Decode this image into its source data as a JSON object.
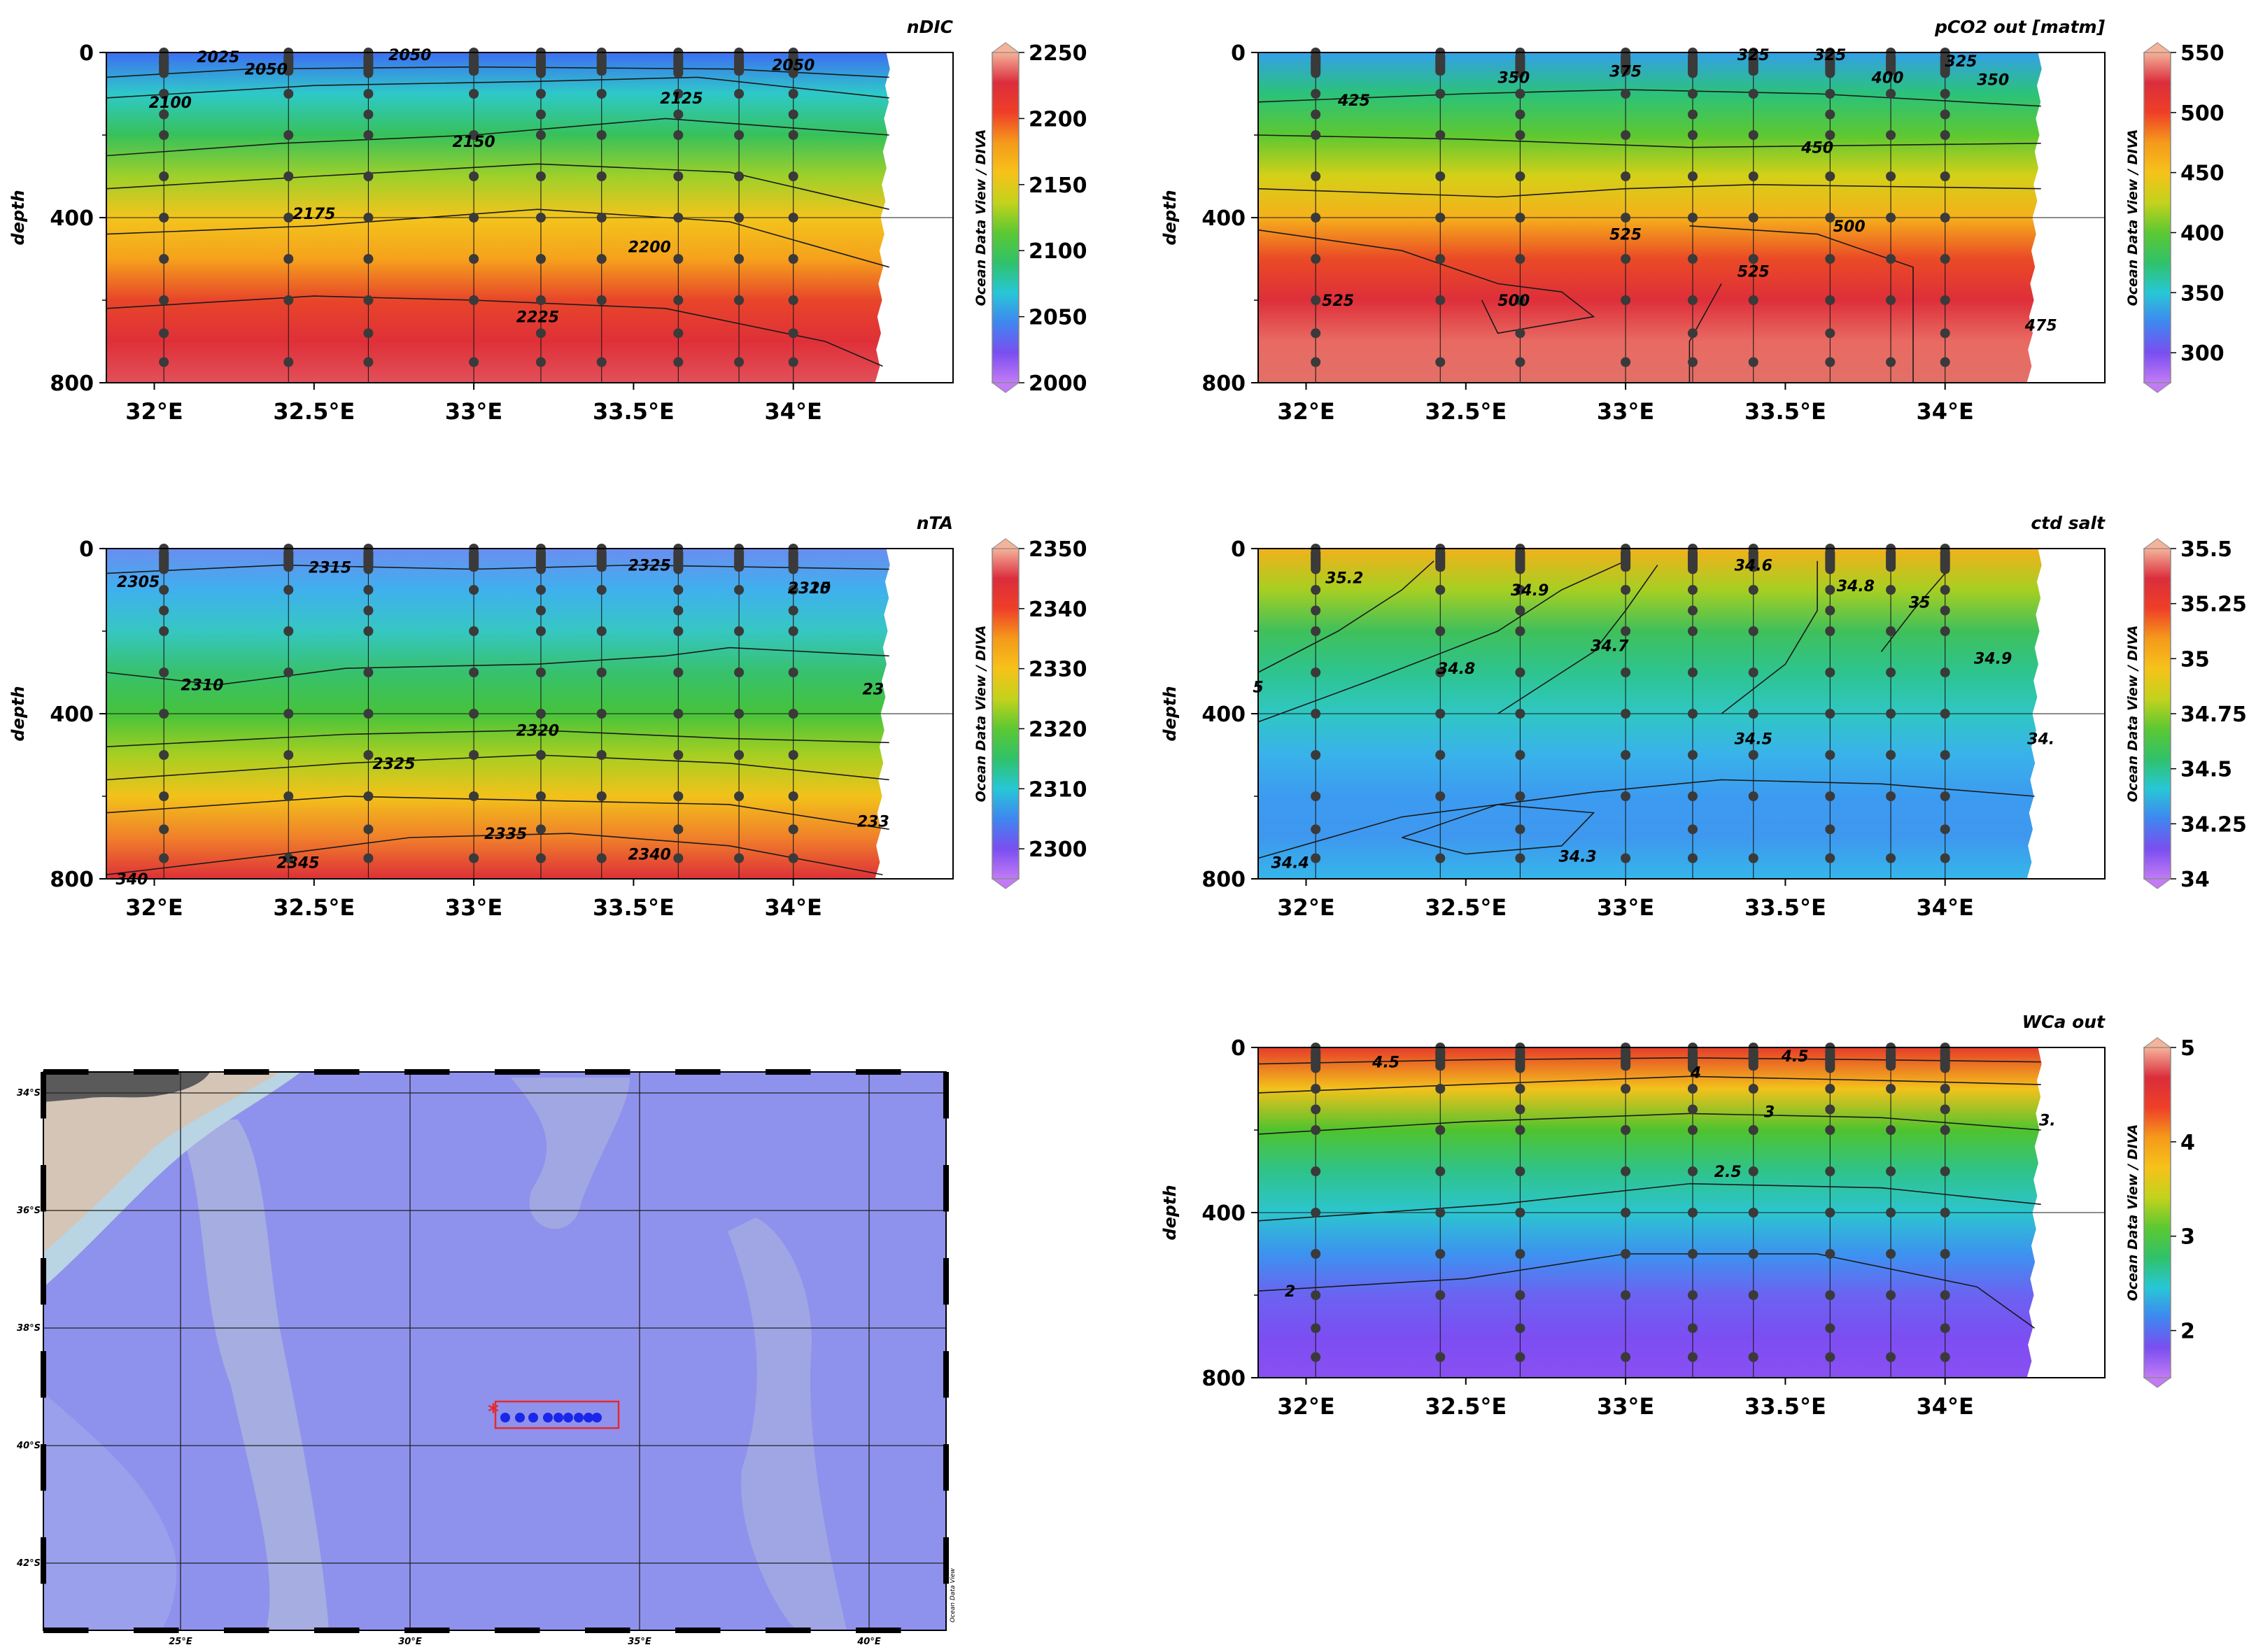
{
  "chart_data": [
    {
      "type": "heatmap",
      "title": "nDIC",
      "xlabel": "",
      "ylabel": "depth",
      "credit": "Ocean Data View / DIVA",
      "xlim": [
        31.85,
        34.5
      ],
      "ylim": [
        800,
        0
      ],
      "x_ticks": [
        "32°E",
        "32.5°E",
        "33°E",
        "33.5°E",
        "34°E"
      ],
      "y_ticks": [
        "0",
        "400",
        "800"
      ],
      "colorbar_ticks": [
        "2250",
        "2200",
        "2150",
        "2100",
        "2050",
        "2000"
      ],
      "colorbar_range": [
        2000,
        2250
      ],
      "contour_labels": [
        "2025",
        "2050",
        "2050",
        "2050",
        "2100",
        "2125",
        "2150",
        "2175",
        "2200",
        "2225"
      ],
      "stations_x": [
        32.03,
        32.42,
        32.67,
        33.0,
        33.21,
        33.4,
        33.64,
        33.83,
        34.0
      ],
      "sample_depths": [
        0,
        10,
        25,
        50,
        100,
        150,
        200,
        300,
        400,
        500,
        600,
        680,
        750
      ]
    },
    {
      "type": "heatmap",
      "title": "pCO2 out [matm]",
      "xlabel": "",
      "ylabel": "depth",
      "credit": "Ocean Data View / DIVA",
      "xlim": [
        31.85,
        34.5
      ],
      "ylim": [
        800,
        0
      ],
      "x_ticks": [
        "32°E",
        "32.5°E",
        "33°E",
        "33.5°E",
        "34°E"
      ],
      "y_ticks": [
        "0",
        "400",
        "800"
      ],
      "colorbar_ticks": [
        "550",
        "500",
        "450",
        "400",
        "350",
        "300"
      ],
      "colorbar_range": [
        275,
        550
      ],
      "contour_labels": [
        "350",
        "375",
        "325",
        "325",
        "400",
        "325",
        "350",
        "425",
        "450",
        "525",
        "500",
        "525",
        "500",
        "525",
        "475"
      ],
      "stations_x": [
        32.03,
        32.42,
        32.67,
        33.0,
        33.21,
        33.4,
        33.64,
        33.83,
        34.0
      ],
      "sample_depths": [
        0,
        10,
        25,
        50,
        100,
        150,
        200,
        300,
        400,
        500,
        600,
        680,
        750
      ]
    },
    {
      "type": "heatmap",
      "title": "nTA",
      "xlabel": "",
      "ylabel": "depth",
      "credit": "Ocean Data View / DIVA",
      "xlim": [
        31.85,
        34.5
      ],
      "ylim": [
        800,
        0
      ],
      "x_ticks": [
        "32°E",
        "32.5°E",
        "33°E",
        "33.5°E",
        "34°E"
      ],
      "y_ticks": [
        "0",
        "400",
        "800"
      ],
      "colorbar_ticks": [
        "2350",
        "2340",
        "2330",
        "2320",
        "2310",
        "2300"
      ],
      "colorbar_range": [
        2295,
        2350
      ],
      "contour_labels": [
        "2305",
        "2315",
        "2325",
        "2325",
        "2310",
        "2310",
        "23",
        "2320",
        "2325",
        "2335",
        "233",
        "2340",
        "2345",
        "340"
      ],
      "stations_x": [
        32.03,
        32.42,
        32.67,
        33.0,
        33.21,
        33.4,
        33.64,
        33.83,
        34.0
      ],
      "sample_depths": [
        0,
        10,
        25,
        50,
        100,
        150,
        200,
        300,
        400,
        500,
        600,
        680,
        750
      ]
    },
    {
      "type": "heatmap",
      "title": "ctd salt",
      "xlabel": "",
      "ylabel": "depth",
      "credit": "Ocean Data View / DIVA",
      "xlim": [
        31.85,
        34.5
      ],
      "ylim": [
        800,
        0
      ],
      "x_ticks": [
        "32°E",
        "32.5°E",
        "33°E",
        "33.5°E",
        "34°E"
      ],
      "y_ticks": [
        "0",
        "400",
        "800"
      ],
      "colorbar_ticks": [
        "35.5",
        "35.25",
        "35",
        "34.75",
        "34.5",
        "34.25",
        "34"
      ],
      "colorbar_range": [
        34,
        35.5
      ],
      "contour_labels": [
        "35.2",
        "34.9",
        "34.8",
        "34.7",
        "34.6",
        "34.8",
        "35",
        "34.9",
        "34.5",
        "34.3",
        "34.4",
        "5",
        "34."
      ],
      "stations_x": [
        32.03,
        32.42,
        32.67,
        33.0,
        33.21,
        33.4,
        33.64,
        33.83,
        34.0
      ],
      "sample_depths": [
        0,
        10,
        25,
        50,
        100,
        150,
        200,
        300,
        400,
        500,
        600,
        680,
        750
      ]
    },
    {
      "type": "heatmap",
      "title": "WCa out",
      "xlabel": "",
      "ylabel": "depth",
      "credit": "Ocean Data View / DIVA",
      "xlim": [
        31.85,
        34.5
      ],
      "ylim": [
        800,
        0
      ],
      "x_ticks": [
        "32°E",
        "32.5°E",
        "33°E",
        "33.5°E",
        "34°E"
      ],
      "y_ticks": [
        "0",
        "400",
        "800"
      ],
      "colorbar_ticks": [
        "5",
        "4",
        "3",
        "2"
      ],
      "colorbar_range": [
        1.5,
        5
      ],
      "contour_labels": [
        "4.5",
        "4",
        "4.5",
        "3",
        "3.",
        "2.5",
        "2"
      ],
      "stations_x": [
        32.03,
        32.42,
        32.67,
        33.0,
        33.21,
        33.4,
        33.64,
        33.83,
        34.0
      ],
      "sample_depths": [
        0,
        10,
        25,
        50,
        100,
        150,
        200,
        300,
        400,
        500,
        600,
        680,
        750
      ]
    }
  ],
  "map": {
    "lat_labels": [
      "34°S",
      "36°S",
      "38°S",
      "40°S",
      "42°S"
    ],
    "lon_labels": [
      "25°E",
      "30°E",
      "35°E",
      "40°E"
    ],
    "credit": "Ocean Data View",
    "section_marker": "*",
    "station_count": 9,
    "colors": {
      "ocean": "#8f92ec",
      "ridge": "#aeb6de",
      "land": "#d4c5b6",
      "section_box": "#e8282a",
      "station": "#1a26e8"
    }
  }
}
